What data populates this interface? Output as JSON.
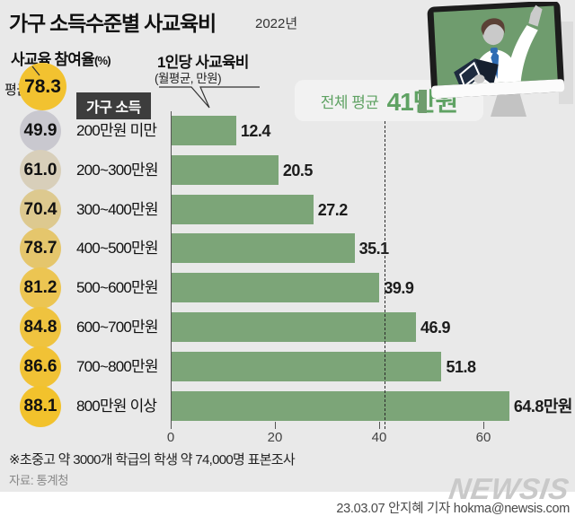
{
  "header": {
    "title": "가구 소득수준별 사교육비",
    "year": "2022년"
  },
  "participation": {
    "label": "사교육 참여율",
    "unit": "(%)",
    "avg_label": "평균",
    "avg_value": "78.3"
  },
  "income_header": "가구 소득",
  "per_capita": {
    "label": "1인당 사교육비",
    "sub": "(월평균, 만원)"
  },
  "overall_average": {
    "prefix": "전체 평균",
    "value": "41만원"
  },
  "rows": [
    {
      "participation": "49.9",
      "circle_color": "#c9c8cf",
      "income": "200만원 미만",
      "value": 12.4,
      "value_label": "12.4"
    },
    {
      "participation": "61.0",
      "circle_color": "#d8cfba",
      "income": "200~300만원",
      "value": 20.5,
      "value_label": "20.5"
    },
    {
      "participation": "70.4",
      "circle_color": "#ddc98f",
      "income": "300~400만원",
      "value": 27.2,
      "value_label": "27.2"
    },
    {
      "participation": "78.7",
      "circle_color": "#e5c66c",
      "income": "400~500만원",
      "value": 35.1,
      "value_label": "35.1"
    },
    {
      "participation": "81.2",
      "circle_color": "#ecc552",
      "income": "500~600만원",
      "value": 39.9,
      "value_label": "39.9"
    },
    {
      "participation": "84.8",
      "circle_color": "#efc33f",
      "income": "600~700만원",
      "value": 46.9,
      "value_label": "46.9"
    },
    {
      "participation": "86.6",
      "circle_color": "#f1c235",
      "income": "700~800만원",
      "value": 51.8,
      "value_label": "51.8"
    },
    {
      "participation": "88.1",
      "circle_color": "#f2c22c",
      "income": "800만원 이상",
      "value": 64.8,
      "value_label": "64.8만원"
    }
  ],
  "chart_data": {
    "type": "bar",
    "orientation": "horizontal",
    "title": "가구 소득수준별 사교육비 (2022년)",
    "categories": [
      "200만원 미만",
      "200~300만원",
      "300~400만원",
      "400~500만원",
      "500~600만원",
      "600~700만원",
      "700~800만원",
      "800만원 이상"
    ],
    "series": [
      {
        "name": "1인당 사교육비(월평균, 만원)",
        "values": [
          12.4,
          20.5,
          27.2,
          35.1,
          39.9,
          46.9,
          51.8,
          64.8
        ]
      },
      {
        "name": "사교육 참여율(%)",
        "values": [
          49.9,
          61.0,
          70.4,
          78.7,
          81.2,
          84.8,
          86.6,
          88.1
        ]
      }
    ],
    "participation_average": 78.3,
    "xlim": [
      0,
      70
    ],
    "xticks": [
      0,
      20,
      40,
      60
    ],
    "avg_line": {
      "value": 41,
      "label": "전체 평균 41만원"
    },
    "grid": false,
    "legend_position": "none"
  },
  "footnote": "※초중고 약 3000개 학급의 학생 약 74,000명 표본조사",
  "source": "자료: 통계청",
  "footer": {
    "logo": "NEWSIS",
    "credit": "23.03.07 안지혜 기자 hokma@newsis.com"
  },
  "colors": {
    "background": "#e9e9e9",
    "bar_green": "#7ca578",
    "screen_green": "#6f9c6e",
    "accent_green": "#5fa263",
    "avg_circle_yellow": "#f2c230",
    "income_header_bg": "#3d3d3d",
    "logo_gray": "#c9c9c9"
  }
}
